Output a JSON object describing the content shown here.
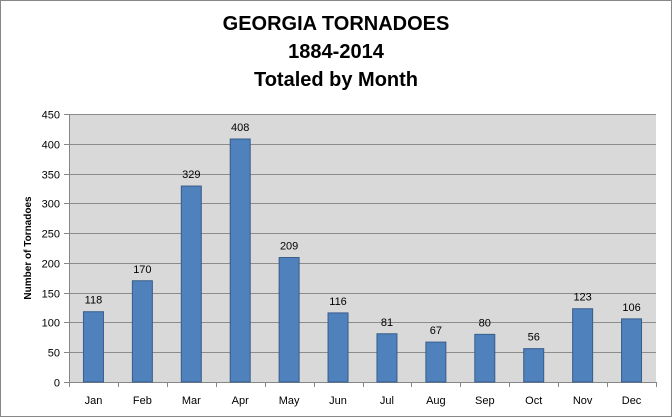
{
  "chart_data": {
    "type": "bar",
    "title_lines": [
      "GEORGIA TORNADOES",
      "1884-2014",
      "Totaled by Month"
    ],
    "xlabel": "",
    "ylabel": "Number of Tornadoes",
    "categories": [
      "Jan",
      "Feb",
      "Mar",
      "Apr",
      "May",
      "Jun",
      "Jul",
      "Aug",
      "Sep",
      "Oct",
      "Nov",
      "Dec"
    ],
    "values": [
      118,
      170,
      329,
      408,
      209,
      116,
      81,
      67,
      80,
      56,
      123,
      106
    ],
    "ylim": [
      0,
      450
    ],
    "yticks": [
      0,
      50,
      100,
      150,
      200,
      250,
      300,
      350,
      400,
      450
    ],
    "grid": true,
    "legend": "none",
    "colors": {
      "bar_fill": "#4f81bd",
      "bar_stroke": "#385d8a",
      "plot_background": "#d9d9d9",
      "gridline": "#8c8c8c"
    }
  }
}
